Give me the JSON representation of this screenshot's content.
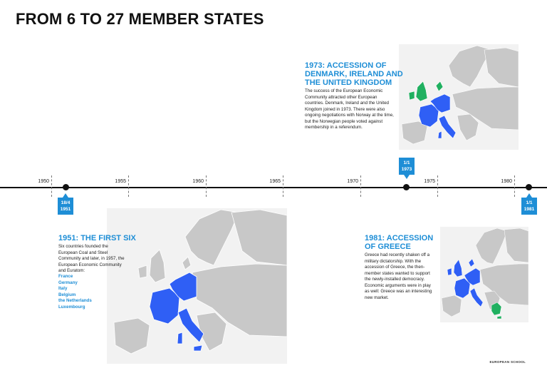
{
  "title": "FROM 6 TO 27 MEMBER STATES",
  "timeline": {
    "years": [
      "1950",
      "1955",
      "1960",
      "1965",
      "1970",
      "1975",
      "1980"
    ],
    "events": [
      {
        "date_line1": "18/4",
        "date_line2": "1951"
      },
      {
        "date_line1": "1/1",
        "date_line2": "1973"
      },
      {
        "date_line1": "1/1",
        "date_line2": "1981"
      }
    ]
  },
  "panel_1951": {
    "heading": "1951: THE FIRST SIX",
    "body": "Six countries founded the European Coal and Steel Community and later, in 1957, the European Economic Community and Euratom:",
    "countries": [
      "France",
      "Germany",
      "Italy",
      "Belgium",
      "the Netherlands",
      "Luxembourg"
    ]
  },
  "panel_1973": {
    "heading_line1": "1973: ACCESSION OF",
    "heading_line2": "DENMARK, IRELAND AND",
    "heading_line3": "THE UNITED KINGDOM",
    "body": "The success of the European Economic Community attracted other European countries. Denmark, Ireland and the United Kingdom joined in 1973. There were also ongoing negotiations with Norway at the time, but the Norwegian people voted against membership in a referendum."
  },
  "panel_1981": {
    "heading_line1": "1981: ACCESSION",
    "heading_line2": "OF GREECE",
    "body": "Greece had recently shaken off a military dictatorship. With the accession of Greece, the then-member states wanted to support the newly-installed democracy. Economic arguments were in play as well: Greece was an interesting new market."
  },
  "footer": "EUROPEAN SCHOOL",
  "colors": {
    "accent": "#1e8ed6",
    "member": "#2f5ff5",
    "new_member": "#20b060",
    "land": "#c8c8c8"
  }
}
